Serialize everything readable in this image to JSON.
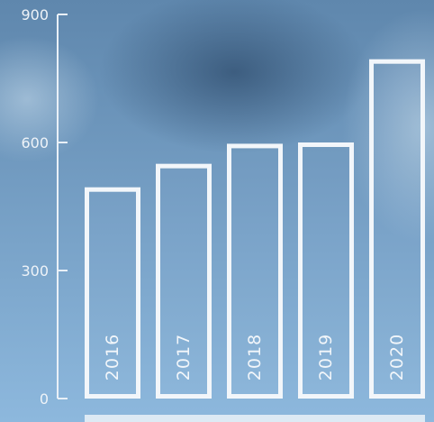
{
  "colors": {
    "background_top": "#5f87ad",
    "background_bottom": "#8db8dd",
    "bar_outline": "#f2f6fa",
    "axis": "#e9f0f7",
    "tick_text": "#eef3f8"
  },
  "chart_data": {
    "type": "bar",
    "title": "",
    "xlabel": "",
    "ylabel": "",
    "categories": [
      "2016",
      "2017",
      "2018",
      "2019",
      "2020"
    ],
    "values": [
      495,
      550,
      597,
      600,
      795
    ],
    "ylim": [
      0,
      900
    ],
    "yticks": [
      0,
      300,
      600,
      900
    ],
    "ytick_labels": [
      "0",
      "300",
      "600",
      "900"
    ],
    "grid": false,
    "legend": "none"
  }
}
